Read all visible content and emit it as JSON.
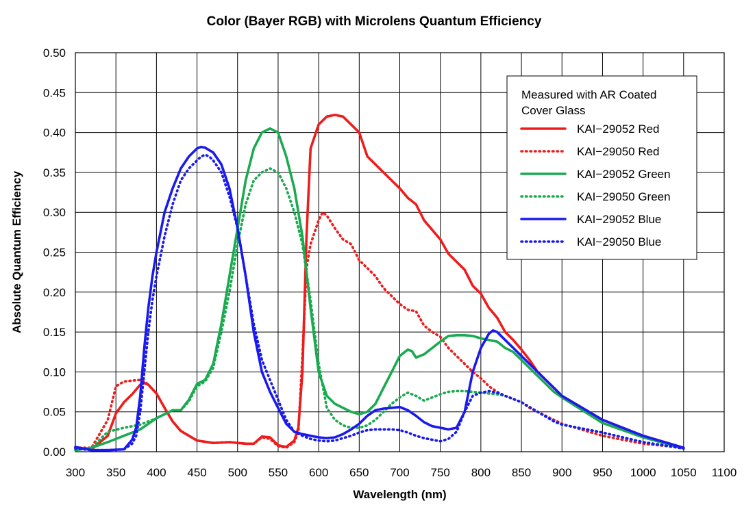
{
  "chart_data": {
    "type": "line",
    "title": "Color (Bayer RGB) with Microlens Quantum Efficiency",
    "xlabel": "Wavelength (nm)",
    "ylabel": "Absolute Quantum Efficiency",
    "xlim": [
      300,
      1100
    ],
    "ylim": [
      0,
      0.5
    ],
    "x_ticks": [
      "300",
      "350",
      "400",
      "450",
      "500",
      "550",
      "600",
      "650",
      "700",
      "750",
      "800",
      "850",
      "900",
      "950",
      "1000",
      "1050",
      "1100"
    ],
    "y_ticks": [
      "0.00",
      "0.05",
      "0.10",
      "0.15",
      "0.20",
      "0.25",
      "0.30",
      "0.35",
      "0.40",
      "0.45",
      "0.50"
    ],
    "grid": true,
    "legend_position": "top-right",
    "legend_title_lines": [
      "Measured with AR Coated",
      "Cover Glass"
    ],
    "series": [
      {
        "name": "KAI−29052 Red",
        "color": "#ee1c1c",
        "style": "solid",
        "x": [
          300,
          320,
          340,
          350,
          360,
          370,
          380,
          385,
          390,
          400,
          410,
          420,
          430,
          450,
          470,
          490,
          510,
          520,
          530,
          540,
          550,
          560,
          570,
          575,
          580,
          585,
          590,
          600,
          610,
          620,
          630,
          640,
          650,
          660,
          670,
          680,
          690,
          700,
          710,
          720,
          730,
          740,
          750,
          760,
          770,
          780,
          790,
          800,
          810,
          820,
          830,
          840,
          850,
          860,
          870,
          880,
          890,
          900,
          950,
          1000,
          1050
        ],
        "y": [
          0.005,
          0.003,
          0.02,
          0.048,
          0.062,
          0.072,
          0.084,
          0.086,
          0.084,
          0.073,
          0.055,
          0.038,
          0.026,
          0.014,
          0.011,
          0.012,
          0.01,
          0.01,
          0.019,
          0.018,
          0.008,
          0.006,
          0.014,
          0.03,
          0.1,
          0.27,
          0.38,
          0.41,
          0.42,
          0.422,
          0.42,
          0.41,
          0.4,
          0.37,
          0.36,
          0.35,
          0.34,
          0.33,
          0.318,
          0.31,
          0.29,
          0.278,
          0.266,
          0.248,
          0.238,
          0.228,
          0.208,
          0.198,
          0.18,
          0.168,
          0.15,
          0.14,
          0.128,
          0.115,
          0.1,
          0.09,
          0.08,
          0.07,
          0.04,
          0.02,
          0.005
        ]
      },
      {
        "name": "KAI−29050 Red",
        "color": "#ee1c1c",
        "style": "dotted",
        "x": [
          300,
          320,
          340,
          350,
          360,
          370,
          380,
          385,
          390,
          400,
          410,
          420,
          430,
          450,
          470,
          490,
          510,
          520,
          530,
          540,
          550,
          560,
          570,
          575,
          580,
          585,
          590,
          600,
          605,
          610,
          620,
          630,
          640,
          650,
          660,
          670,
          680,
          690,
          700,
          710,
          720,
          730,
          740,
          750,
          760,
          770,
          780,
          790,
          800,
          810,
          820,
          830,
          840,
          850,
          860,
          870,
          880,
          890,
          900,
          950,
          1000,
          1050
        ],
        "y": [
          0.005,
          0.005,
          0.04,
          0.082,
          0.088,
          0.089,
          0.09,
          0.088,
          0.084,
          0.073,
          0.055,
          0.038,
          0.026,
          0.014,
          0.011,
          0.012,
          0.01,
          0.01,
          0.018,
          0.016,
          0.007,
          0.005,
          0.012,
          0.025,
          0.12,
          0.23,
          0.26,
          0.29,
          0.3,
          0.296,
          0.28,
          0.266,
          0.26,
          0.24,
          0.23,
          0.22,
          0.205,
          0.195,
          0.185,
          0.178,
          0.176,
          0.158,
          0.15,
          0.144,
          0.13,
          0.12,
          0.11,
          0.1,
          0.092,
          0.082,
          0.075,
          0.07,
          0.066,
          0.062,
          0.055,
          0.05,
          0.045,
          0.04,
          0.035,
          0.02,
          0.01,
          0.005
        ]
      },
      {
        "name": "KAI−29052 Green",
        "color": "#1aaa50",
        "style": "solid",
        "x": [
          300,
          320,
          340,
          360,
          380,
          400,
          420,
          430,
          440,
          450,
          460,
          470,
          480,
          490,
          500,
          510,
          520,
          530,
          540,
          550,
          560,
          570,
          580,
          590,
          600,
          610,
          620,
          630,
          640,
          650,
          660,
          670,
          680,
          690,
          700,
          710,
          715,
          720,
          730,
          740,
          750,
          760,
          770,
          780,
          790,
          800,
          810,
          820,
          830,
          840,
          850,
          860,
          870,
          880,
          890,
          900,
          950,
          1000,
          1050
        ],
        "y": [
          0.002,
          0.005,
          0.012,
          0.02,
          0.028,
          0.042,
          0.052,
          0.052,
          0.065,
          0.085,
          0.09,
          0.11,
          0.16,
          0.22,
          0.28,
          0.34,
          0.38,
          0.4,
          0.405,
          0.4,
          0.37,
          0.33,
          0.27,
          0.18,
          0.1,
          0.07,
          0.06,
          0.055,
          0.05,
          0.047,
          0.05,
          0.06,
          0.08,
          0.1,
          0.12,
          0.128,
          0.126,
          0.118,
          0.122,
          0.13,
          0.138,
          0.145,
          0.146,
          0.146,
          0.145,
          0.142,
          0.14,
          0.138,
          0.13,
          0.125,
          0.115,
          0.105,
          0.095,
          0.085,
          0.075,
          0.068,
          0.036,
          0.018,
          0.004
        ]
      },
      {
        "name": "KAI−29050 Green",
        "color": "#1aaa50",
        "style": "dotted",
        "x": [
          300,
          320,
          340,
          360,
          380,
          400,
          420,
          430,
          440,
          450,
          460,
          470,
          480,
          490,
          500,
          510,
          520,
          530,
          540,
          550,
          560,
          570,
          580,
          590,
          600,
          610,
          620,
          630,
          640,
          650,
          660,
          670,
          680,
          690,
          700,
          710,
          720,
          730,
          740,
          750,
          760,
          770,
          780,
          790,
          800,
          810,
          820,
          830,
          840,
          850,
          860,
          870,
          880,
          890,
          900,
          950,
          1000,
          1050
        ],
        "y": [
          0.003,
          0.005,
          0.025,
          0.03,
          0.034,
          0.042,
          0.052,
          0.052,
          0.063,
          0.082,
          0.088,
          0.105,
          0.15,
          0.2,
          0.26,
          0.31,
          0.34,
          0.35,
          0.355,
          0.35,
          0.33,
          0.3,
          0.26,
          0.19,
          0.11,
          0.055,
          0.04,
          0.033,
          0.03,
          0.03,
          0.033,
          0.04,
          0.05,
          0.06,
          0.068,
          0.074,
          0.07,
          0.064,
          0.068,
          0.072,
          0.075,
          0.076,
          0.076,
          0.075,
          0.074,
          0.073,
          0.072,
          0.07,
          0.066,
          0.062,
          0.056,
          0.05,
          0.044,
          0.038,
          0.034,
          0.024,
          0.012,
          0.004
        ]
      },
      {
        "name": "KAI−29052 Blue",
        "color": "#1a1aee",
        "style": "solid",
        "x": [
          300,
          320,
          340,
          360,
          370,
          375,
          380,
          385,
          390,
          395,
          400,
          410,
          420,
          430,
          440,
          450,
          455,
          460,
          465,
          470,
          480,
          490,
          500,
          510,
          520,
          530,
          540,
          550,
          560,
          570,
          580,
          590,
          600,
          610,
          620,
          630,
          640,
          650,
          660,
          670,
          680,
          690,
          700,
          710,
          720,
          730,
          740,
          750,
          760,
          770,
          780,
          790,
          800,
          810,
          815,
          820,
          830,
          840,
          850,
          860,
          870,
          880,
          890,
          900,
          950,
          1000,
          1050
        ],
        "y": [
          0.006,
          0.002,
          0.002,
          0.003,
          0.015,
          0.03,
          0.07,
          0.13,
          0.18,
          0.22,
          0.25,
          0.3,
          0.33,
          0.355,
          0.37,
          0.38,
          0.382,
          0.381,
          0.378,
          0.375,
          0.36,
          0.33,
          0.28,
          0.22,
          0.15,
          0.1,
          0.075,
          0.055,
          0.035,
          0.025,
          0.022,
          0.02,
          0.018,
          0.017,
          0.018,
          0.022,
          0.028,
          0.035,
          0.045,
          0.052,
          0.054,
          0.055,
          0.056,
          0.052,
          0.045,
          0.037,
          0.032,
          0.03,
          0.028,
          0.03,
          0.05,
          0.1,
          0.13,
          0.148,
          0.152,
          0.15,
          0.14,
          0.13,
          0.12,
          0.11,
          0.1,
          0.09,
          0.08,
          0.07,
          0.04,
          0.02,
          0.005
        ]
      },
      {
        "name": "KAI−29050 Blue",
        "color": "#1a1aee",
        "style": "dotted",
        "x": [
          300,
          320,
          340,
          360,
          370,
          375,
          380,
          385,
          390,
          395,
          400,
          410,
          420,
          430,
          440,
          450,
          455,
          460,
          465,
          470,
          480,
          490,
          500,
          510,
          520,
          530,
          540,
          550,
          560,
          570,
          580,
          590,
          600,
          610,
          620,
          630,
          640,
          650,
          660,
          670,
          680,
          690,
          700,
          710,
          720,
          730,
          740,
          750,
          760,
          770,
          780,
          790,
          800,
          810,
          815,
          820,
          830,
          840,
          850,
          860,
          870,
          880,
          890,
          900,
          950,
          1000,
          1050
        ],
        "y": [
          0.004,
          0.002,
          0.002,
          0.003,
          0.01,
          0.02,
          0.05,
          0.1,
          0.15,
          0.19,
          0.22,
          0.27,
          0.31,
          0.34,
          0.355,
          0.365,
          0.37,
          0.372,
          0.37,
          0.365,
          0.35,
          0.32,
          0.28,
          0.22,
          0.16,
          0.115,
          0.09,
          0.065,
          0.04,
          0.025,
          0.02,
          0.016,
          0.014,
          0.013,
          0.014,
          0.017,
          0.02,
          0.024,
          0.027,
          0.028,
          0.028,
          0.028,
          0.027,
          0.024,
          0.02,
          0.017,
          0.015,
          0.013,
          0.016,
          0.025,
          0.05,
          0.07,
          0.074,
          0.076,
          0.075,
          0.074,
          0.07,
          0.066,
          0.062,
          0.056,
          0.05,
          0.044,
          0.038,
          0.034,
          0.024,
          0.012,
          0.004
        ]
      }
    ]
  }
}
